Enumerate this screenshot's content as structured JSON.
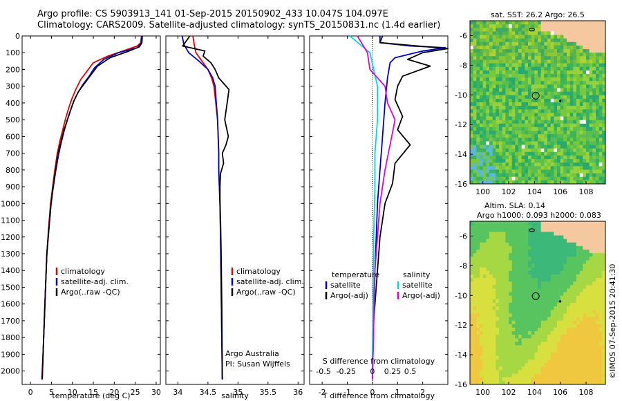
{
  "header": {
    "line1": "Argo profile: CS 5903913_141 01-Sep-2015 20150902_433 10.047S 104.097E",
    "line2": "Climatology: CARS2009. Satellite-adjusted climatology: synTS_20150831.nc (1.4d earlier)"
  },
  "colors": {
    "climatology": "#e60000",
    "satellite": "#0000cc",
    "argo": "#000000",
    "satellite_s": "#00d8e0",
    "argo_s": "#e000e0"
  },
  "chart_data": [
    {
      "id": "temperature",
      "type": "line",
      "xlabel": "temperature (deg C)",
      "ylabel": "",
      "xlim": [
        -2,
        31
      ],
      "ylim": [
        2080,
        0
      ],
      "xticks": [
        0,
        5,
        10,
        15,
        20,
        25,
        30
      ],
      "yticks": [
        0,
        100,
        200,
        300,
        400,
        500,
        600,
        700,
        800,
        900,
        1000,
        1100,
        1200,
        1300,
        1400,
        1500,
        1600,
        1700,
        1800,
        1900,
        2000
      ],
      "legend": [
        "climatology",
        "satellite-adj. clim.",
        "Argo(..raw -QC)"
      ],
      "series": [
        {
          "name": "climatology",
          "color": "#e60000",
          "x": [
            26.5,
            26.3,
            25.5,
            22.0,
            18.5,
            15.0,
            13.5,
            12.0,
            10.8,
            9.8,
            9.0,
            8.3,
            7.7,
            7.0,
            6.4,
            5.8,
            5.3,
            4.8,
            4.3,
            3.9,
            3.6,
            3.3,
            3.0,
            2.7
          ],
          "y": [
            0,
            40,
            60,
            90,
            120,
            160,
            210,
            260,
            320,
            380,
            440,
            500,
            560,
            630,
            700,
            800,
            900,
            1000,
            1150,
            1300,
            1500,
            1700,
            1900,
            2050
          ]
        },
        {
          "name": "satellite-adj. clim.",
          "color": "#0000cc",
          "x": [
            26.6,
            26.5,
            25.5,
            21.0,
            17.5,
            15.3,
            14.0,
            12.5,
            11.3,
            10.3,
            9.5,
            8.7,
            8.0,
            7.3,
            6.7,
            6.0,
            5.4,
            4.9,
            4.4,
            3.9,
            3.6,
            3.3,
            3.0,
            2.8
          ],
          "y": [
            0,
            40,
            70,
            100,
            140,
            190,
            240,
            290,
            340,
            390,
            450,
            510,
            570,
            640,
            710,
            810,
            910,
            1010,
            1150,
            1300,
            1500,
            1700,
            1900,
            2050
          ]
        },
        {
          "name": "Argo(..raw -QC)",
          "color": "#000000",
          "x": [
            26.7,
            26.6,
            26.0,
            23.0,
            19.0,
            16.0,
            14.5,
            13.0,
            11.5,
            10.5,
            9.6,
            8.8,
            8.0,
            7.3,
            6.6,
            6.0,
            5.4,
            4.9,
            4.4,
            3.9,
            3.6,
            3.3,
            3.0,
            2.8
          ],
          "y": [
            0,
            40,
            65,
            95,
            130,
            180,
            230,
            280,
            330,
            380,
            440,
            500,
            560,
            630,
            700,
            800,
            900,
            1000,
            1150,
            1300,
            1500,
            1700,
            1900,
            2050
          ]
        }
      ]
    },
    {
      "id": "salinity",
      "type": "line",
      "xlabel": "salinity",
      "ylabel": "",
      "xlim": [
        33.8,
        36.1
      ],
      "ylim": [
        2080,
        0
      ],
      "xticks": [
        34,
        34.5,
        35,
        35.5,
        36
      ],
      "legend": [
        "climatology",
        "satellite-adj. clim.",
        "Argo(..raw -QC)"
      ],
      "annotation": [
        "Argo Australia",
        "PI: Susan Wijffels"
      ],
      "series": [
        {
          "name": "climatology",
          "color": "#e60000",
          "x": [
            34.25,
            34.27,
            34.3,
            34.4,
            34.5,
            34.56,
            34.6,
            34.63,
            34.66,
            34.67,
            34.68,
            34.68,
            34.69,
            34.7,
            34.71,
            34.72,
            34.73,
            34.74
          ],
          "y": [
            0,
            50,
            100,
            150,
            200,
            250,
            300,
            400,
            500,
            600,
            700,
            800,
            900,
            1000,
            1200,
            1500,
            1800,
            2050
          ]
        },
        {
          "name": "satellite-adj. clim.",
          "color": "#0000cc",
          "x": [
            34.07,
            34.1,
            34.18,
            34.35,
            34.5,
            34.58,
            34.62,
            34.64,
            34.66,
            34.67,
            34.68,
            34.68,
            34.69,
            34.7,
            34.71,
            34.72,
            34.73,
            34.74
          ],
          "y": [
            0,
            50,
            100,
            150,
            200,
            250,
            300,
            400,
            500,
            600,
            700,
            800,
            900,
            1000,
            1200,
            1500,
            1800,
            2050
          ]
        },
        {
          "name": "Argo(..raw -QC)",
          "color": "#000000",
          "x": [
            34.2,
            34.08,
            34.45,
            34.42,
            34.55,
            34.62,
            34.68,
            34.85,
            34.82,
            34.78,
            34.84,
            34.8,
            34.74,
            34.76,
            34.71,
            34.7,
            34.7,
            34.71,
            34.72,
            34.73,
            34.74
          ],
          "y": [
            0,
            60,
            90,
            120,
            160,
            200,
            250,
            320,
            400,
            500,
            600,
            650,
            700,
            760,
            820,
            900,
            1000,
            1100,
            1300,
            1600,
            2050
          ]
        }
      ]
    },
    {
      "id": "difference",
      "type": "line",
      "xlabel": "T difference from climatology",
      "x2label": "S difference from climatology",
      "xlim": [
        -2.5,
        3
      ],
      "ylim": [
        2080,
        0
      ],
      "xticks": [
        -2,
        -1,
        0,
        1,
        2
      ],
      "x2ticks_labels": [
        "-0.5",
        "-0.25",
        "0",
        "0.25",
        "0.5"
      ],
      "x2ticks_pos": [
        -1.95,
        -1.05,
        0,
        0.8,
        1.5
      ],
      "legend": {
        "temperature": "temperature",
        "salinity": "salinity",
        "items": [
          "satellite",
          "Argo(-adj)",
          "satellite",
          "Argo(-adj)"
        ]
      },
      "series": [
        {
          "name": "satellite",
          "color": "#0000cc",
          "x": [
            0.3,
            0.3,
            1.5,
            2.9,
            2.0,
            0.9,
            0.7,
            0.6,
            0.5,
            0.4,
            0.3,
            0.2,
            0.15,
            0.1,
            0.05,
            0.02,
            0
          ],
          "y": [
            0,
            40,
            60,
            70,
            90,
            130,
            160,
            250,
            400,
            600,
            800,
            1000,
            1200,
            1400,
            1600,
            1800,
            2050
          ]
        },
        {
          "name": "Argo(-adj)",
          "color": "#000000",
          "x": [
            0.4,
            0.3,
            1.8,
            3.0,
            2.0,
            1.4,
            2.3,
            1.2,
            1.0,
            0.9,
            1.2,
            1.0,
            1.5,
            0.9,
            0.8,
            0.5,
            0.3,
            0.2,
            0.05,
            0
          ],
          "y": [
            0,
            40,
            60,
            75,
            100,
            140,
            180,
            240,
            300,
            380,
            480,
            560,
            650,
            760,
            880,
            1000,
            1200,
            1400,
            1700,
            2050
          ]
        },
        {
          "name": "satellite",
          "color": "#00d8e0",
          "x": [
            -0.9,
            -0.5,
            -0.1,
            0.05,
            0.2,
            0.2,
            0.1,
            0.1,
            0.05,
            0.02,
            0
          ],
          "y": [
            0,
            50,
            100,
            200,
            300,
            500,
            700,
            900,
            1200,
            1600,
            2050
          ]
        },
        {
          "name": "Argo(-adj)",
          "color": "#e000e0",
          "x": [
            -0.6,
            -0.4,
            -0.2,
            -0.1,
            0.5,
            0.6,
            0.9,
            0.7,
            0.5,
            0.3,
            0.1,
            0
          ],
          "y": [
            0,
            50,
            100,
            200,
            300,
            400,
            500,
            650,
            800,
            1000,
            1400,
            2050
          ]
        }
      ]
    },
    {
      "id": "sst-map",
      "type": "heatmap",
      "title": "sat. SST: 26.2  Argo: 26.5",
      "xlim": [
        99,
        109.5
      ],
      "ylim": [
        -16,
        -5
      ],
      "xticks": [
        100,
        102,
        104,
        106,
        108
      ],
      "yticks": [
        -6,
        -8,
        -10,
        -12,
        -14,
        -16
      ],
      "marker": {
        "lon": 104.1,
        "lat": -10.05
      }
    },
    {
      "id": "sla-map",
      "type": "heatmap",
      "title": [
        "Altim. SLA: 0.14",
        "Argo h1000: 0.093 h2000: 0.083"
      ],
      "xlim": [
        99,
        109.5
      ],
      "ylim": [
        -16,
        -5
      ],
      "xticks": [
        100,
        102,
        104,
        106,
        108
      ],
      "yticks": [
        -6,
        -8,
        -10,
        -12,
        -14,
        -16
      ],
      "marker": {
        "lon": 104.1,
        "lat": -10.05
      }
    }
  ],
  "credit": "©IMOS 07-Sep-2015 20:41:30"
}
